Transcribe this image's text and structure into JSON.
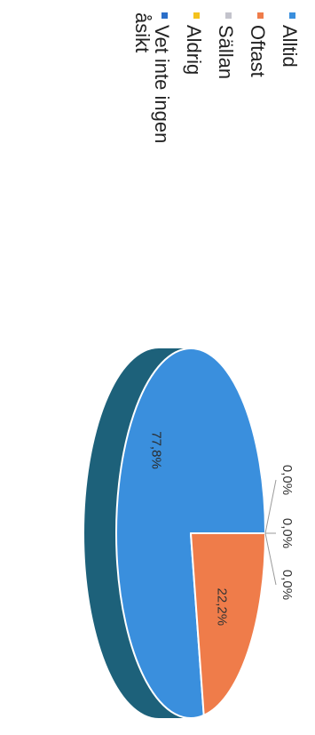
{
  "chart_data": {
    "type": "pie",
    "title": "",
    "orientation": "rotated-90-clockwise",
    "three_d": true,
    "legend_position": "left",
    "categories": [
      "Alltid",
      "Oftast",
      "Sällan",
      "Aldrig",
      "Vet inte ingen åsikt"
    ],
    "values": [
      77.8,
      22.2,
      0.0,
      0.0,
      0.0
    ],
    "data_labels": [
      "77,8%",
      "22,2%",
      "0,0%",
      "0,0%",
      "0,0%"
    ],
    "legend": [
      {
        "label": "Alltid",
        "color": "#3a8fdd"
      },
      {
        "label": "Oftast",
        "color": "#ef7c4a"
      },
      {
        "label": "Sällan",
        "color": "#c3c3cc"
      },
      {
        "label": "Aldrig",
        "color": "#f4c21d"
      },
      {
        "label_lines": [
          "Vet inte ingen",
          "åsikt"
        ],
        "color": "#2b6fc9"
      }
    ],
    "colors": {
      "alltid": "#3a8fdd",
      "oftast": "#ef7c4a",
      "side_shade": "#1d617a"
    }
  }
}
